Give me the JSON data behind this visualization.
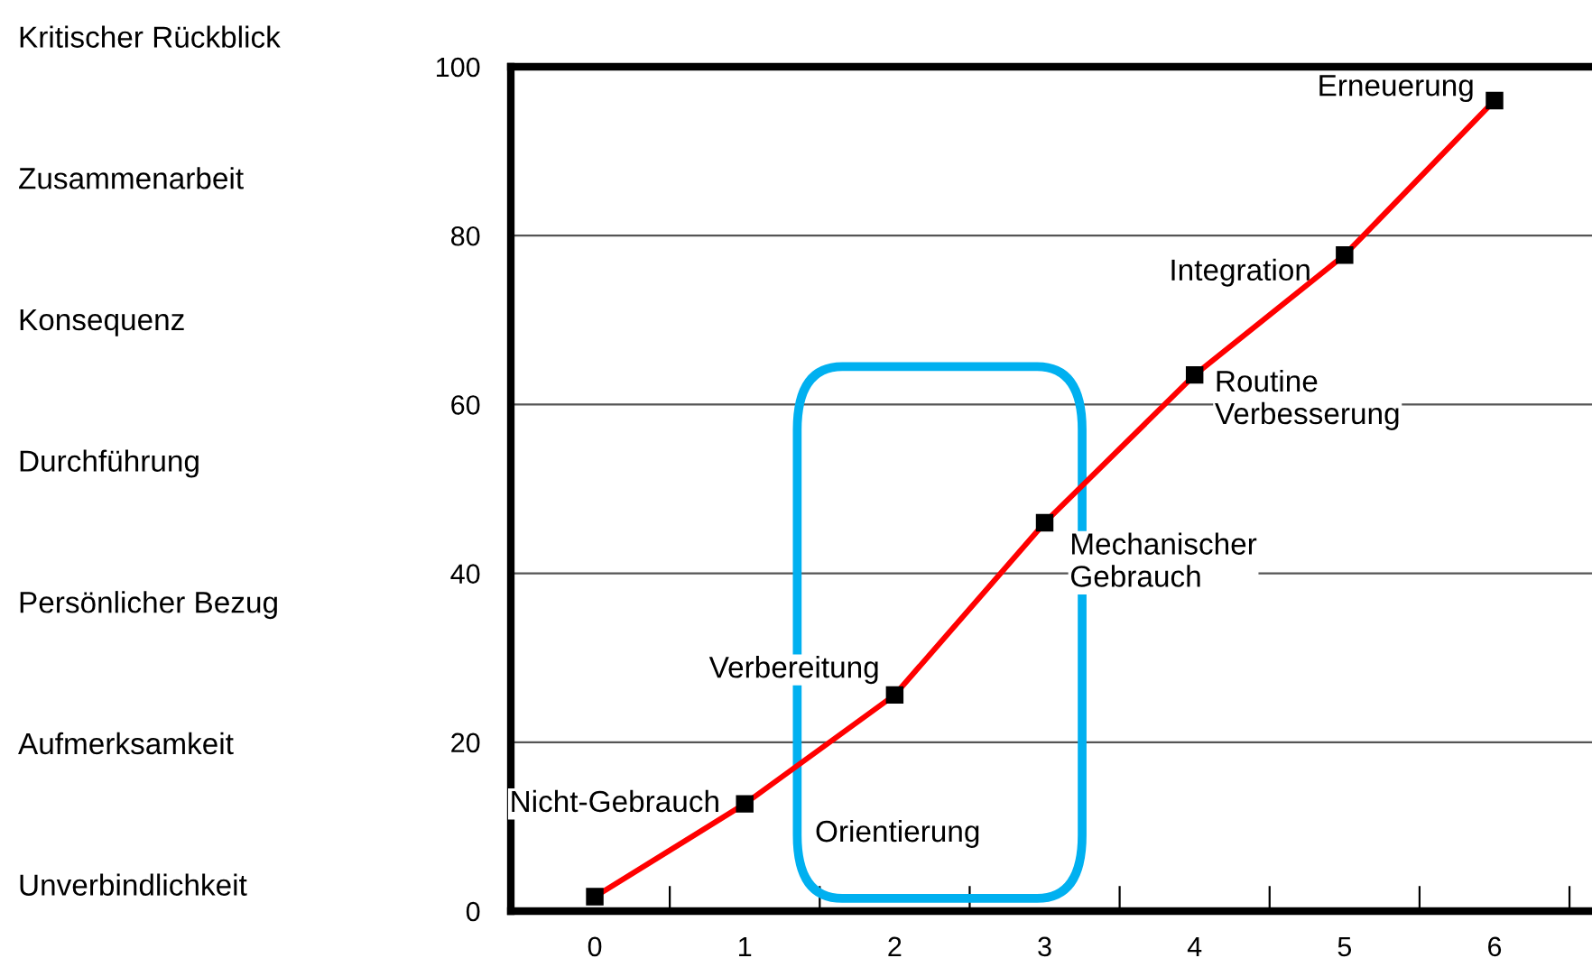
{
  "chart_data": {
    "type": "line",
    "categories": [
      "0",
      "1",
      "2",
      "3",
      "4",
      "5",
      "6"
    ],
    "series": [
      {
        "color": "#ff0000",
        "values": [
          1.7,
          12.7,
          25.6,
          46,
          63.5,
          77.7,
          96
        ]
      }
    ],
    "marker": "square",
    "ylim": [
      0,
      100
    ],
    "yticks": [
      0,
      20,
      40,
      60,
      80,
      100
    ],
    "grid": "y",
    "annotations": [
      {
        "text": "Nicht-Gebrauch",
        "x": "0",
        "y": 1.7
      },
      {
        "text": "Orientierung",
        "x": "1",
        "y": 12.7
      },
      {
        "text": "Verbereitung",
        "x": "2",
        "y": 25.6
      },
      {
        "text": "Mechanischer\nGebrauch",
        "x": "3",
        "y": 46
      },
      {
        "text": "Routine\nVerbesserung",
        "x": "4",
        "y": 63.5
      },
      {
        "text": "Integration",
        "x": "5",
        "y": 77.7
      },
      {
        "text": "Erneuerung",
        "x": "6",
        "y": 96
      },
      "Kritischer Rückblick",
      "Zusammenarbeit",
      "Konsequenz",
      "Durchführung",
      "Persönlicher Bezug",
      "Aufmerksamkeit",
      "Unverbindlichkeit"
    ]
  }
}
